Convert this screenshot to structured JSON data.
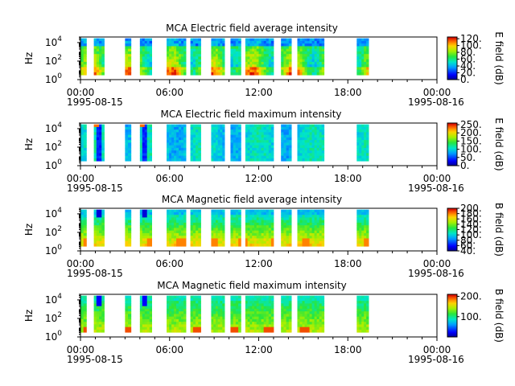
{
  "chart_data": [
    {
      "type": "heatmap",
      "title": "MCA  Electric field average intensity",
      "ylabel": "Hz",
      "y_scale": "log",
      "ylim": [
        1,
        40000
      ],
      "y_ticks": [
        {
          "base": "10",
          "exp": "0"
        },
        {
          "base": "10",
          "exp": "2"
        },
        {
          "base": "10",
          "exp": "4"
        }
      ],
      "x_ticks": [
        "00:00",
        "06:00",
        "12:00",
        "18:00",
        "00:00"
      ],
      "x_dates": [
        "1995-08-15",
        "1995-08-16"
      ],
      "colorbar": {
        "label": "E field (dB)",
        "min": 0,
        "max": 125,
        "ticks": [
          "0.",
          "20.",
          "40.",
          "60.",
          "80.",
          "100.",
          "120."
        ]
      },
      "data_hours": [
        [
          0.0,
          0.4
        ],
        [
          0.9,
          1.6
        ],
        [
          3.0,
          3.4
        ],
        [
          4.0,
          4.8
        ],
        [
          5.8,
          7.1
        ],
        [
          7.4,
          8.1
        ],
        [
          8.8,
          9.7
        ],
        [
          10.1,
          10.8
        ],
        [
          11.1,
          12.0
        ],
        [
          12.0,
          13.0
        ],
        [
          13.5,
          14.2
        ],
        [
          14.6,
          16.4
        ],
        [
          18.6,
          19.4
        ]
      ],
      "palette": "ave"
    },
    {
      "type": "heatmap",
      "title": "MCA  Electric field maximum intensity",
      "ylabel": "Hz",
      "y_scale": "log",
      "ylim": [
        1,
        40000
      ],
      "y_ticks": [
        {
          "base": "10",
          "exp": "0"
        },
        {
          "base": "10",
          "exp": "2"
        },
        {
          "base": "10",
          "exp": "4"
        }
      ],
      "x_ticks": [
        "00:00",
        "06:00",
        "12:00",
        "18:00",
        "00:00"
      ],
      "x_dates": [
        "1995-08-15",
        "1995-08-16"
      ],
      "colorbar": {
        "label": "E field (dB)",
        "min": 0,
        "max": 260,
        "ticks": [
          "0.",
          "50.",
          "100.",
          "150.",
          "200.",
          "250."
        ]
      },
      "data_hours": [
        [
          0.0,
          0.4
        ],
        [
          0.9,
          1.6
        ],
        [
          3.0,
          3.4
        ],
        [
          4.0,
          4.8
        ],
        [
          5.8,
          7.1
        ],
        [
          7.4,
          8.1
        ],
        [
          8.8,
          9.7
        ],
        [
          10.1,
          10.8
        ],
        [
          11.1,
          12.0
        ],
        [
          12.0,
          13.0
        ],
        [
          13.5,
          14.2
        ],
        [
          14.6,
          16.4
        ],
        [
          18.6,
          19.4
        ]
      ],
      "palette": "max"
    },
    {
      "type": "heatmap",
      "title": "MCA  Magnetic field average intensity",
      "ylabel": "Hz",
      "y_scale": "log",
      "ylim": [
        1,
        40000
      ],
      "y_ticks": [
        {
          "base": "10",
          "exp": "0"
        },
        {
          "base": "10",
          "exp": "2"
        },
        {
          "base": "10",
          "exp": "4"
        }
      ],
      "x_ticks": [
        "00:00",
        "06:00",
        "12:00",
        "18:00",
        "00:00"
      ],
      "x_dates": [
        "1995-08-15",
        "1995-08-16"
      ],
      "colorbar": {
        "label": "B field (dB)",
        "min": 40,
        "max": 200,
        "ticks": [
          "40.",
          "60.",
          "80.",
          "100.",
          "120.",
          "140.",
          "160.",
          "180.",
          "200."
        ]
      },
      "data_hours": [
        [
          0.0,
          0.4
        ],
        [
          0.9,
          1.6
        ],
        [
          3.0,
          3.4
        ],
        [
          4.0,
          4.8
        ],
        [
          5.8,
          7.1
        ],
        [
          7.4,
          8.1
        ],
        [
          8.8,
          9.7
        ],
        [
          10.1,
          10.8
        ],
        [
          11.1,
          12.0
        ],
        [
          12.0,
          13.0
        ],
        [
          13.5,
          14.2
        ],
        [
          14.6,
          16.4
        ],
        [
          18.6,
          19.4
        ]
      ],
      "palette": "bave"
    },
    {
      "type": "heatmap",
      "title": "MCA  Magnetic field maximum intensity",
      "ylabel": "Hz",
      "y_scale": "log",
      "ylim": [
        1,
        40000
      ],
      "y_ticks": [
        {
          "base": "10",
          "exp": "0"
        },
        {
          "base": "10",
          "exp": "2"
        },
        {
          "base": "10",
          "exp": "4"
        }
      ],
      "x_ticks": [
        "00:00",
        "06:00",
        "12:00",
        "18:00",
        "00:00"
      ],
      "x_dates": [
        "1995-08-15",
        "1995-08-16"
      ],
      "colorbar": {
        "label": "B field (dB)",
        "min": 0,
        "max": 210,
        "ticks": [
          "100.",
          "200."
        ]
      },
      "data_hours": [
        [
          0.0,
          0.4
        ],
        [
          0.9,
          1.6
        ],
        [
          3.0,
          3.4
        ],
        [
          4.0,
          4.8
        ],
        [
          5.8,
          7.1
        ],
        [
          7.4,
          8.1
        ],
        [
          8.8,
          9.7
        ],
        [
          10.1,
          10.8
        ],
        [
          11.1,
          12.0
        ],
        [
          12.0,
          13.0
        ],
        [
          13.5,
          14.2
        ],
        [
          14.6,
          16.4
        ],
        [
          18.6,
          19.4
        ]
      ],
      "palette": "bmax"
    }
  ]
}
